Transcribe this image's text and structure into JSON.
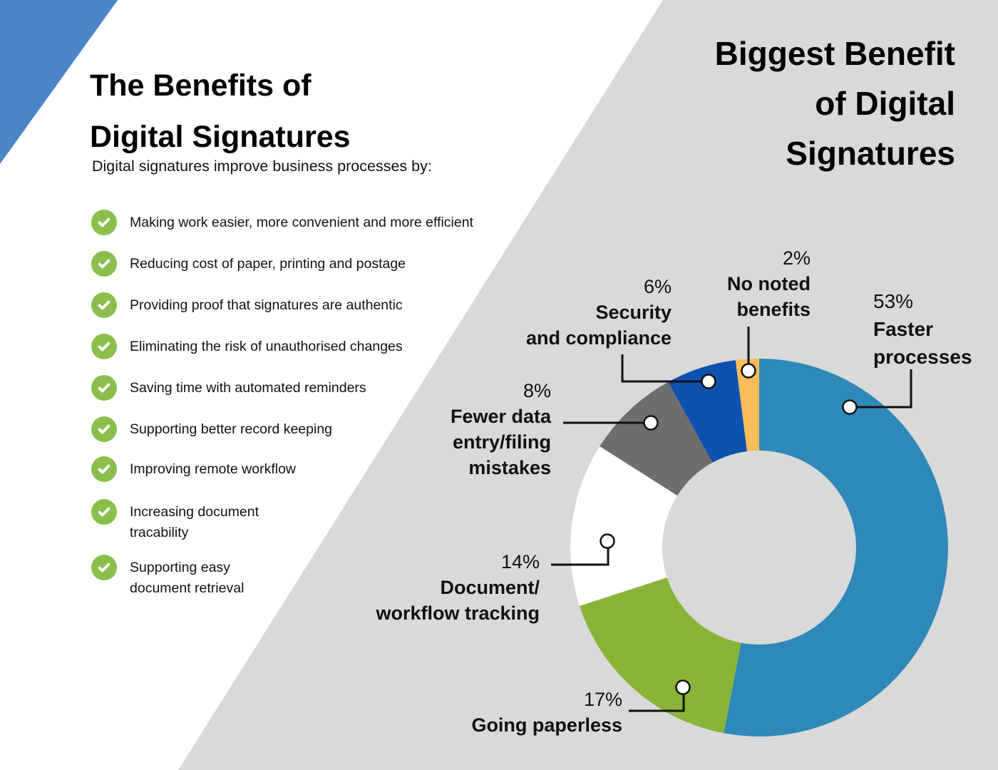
{
  "page": {
    "left": {
      "title_line1": "The Benefits of",
      "title_line2": "Digital Signatures",
      "subtitle": "Digital signatures improve business processes by:",
      "items": [
        "Making work easier, more convenient and more efficient",
        "Reducing cost of paper, printing and postage",
        "Providing proof that signatures are authentic",
        "Eliminating the risk of unauthorised changes",
        "Saving time with automated reminders",
        "Supporting better record keeping",
        "Improving remote workflow",
        "Increasing document tracability",
        "Supporting easy document retrieval"
      ]
    },
    "right": {
      "title_line1": "Biggest Benefit",
      "title_line2": "of Digital",
      "title_line3": "Signatures"
    }
  },
  "colors": {
    "triangle_blue": "#4A86C7",
    "panel_gray": "#D9D9D9",
    "check_green": "#8BBE4B"
  },
  "chart_data": {
    "type": "pie",
    "subtype": "donut",
    "title": "Biggest Benefit of Digital Signatures",
    "start_angle_deg": 0,
    "direction": "clockwise",
    "legend_position": "callouts",
    "slices": [
      {
        "label": "Faster processes",
        "value": 53,
        "pct": "53%",
        "color": "#2E89B8",
        "lines": [
          "Faster",
          "processes"
        ]
      },
      {
        "label": "Going paperless",
        "value": 17,
        "pct": "17%",
        "color": "#8AB437",
        "lines": [
          "Going paperless"
        ]
      },
      {
        "label": "Document/workflow tracking",
        "value": 14,
        "pct": "14%",
        "color": "#FFFFFF",
        "lines": [
          "Document/",
          "workflow tracking"
        ]
      },
      {
        "label": "Fewer data entry/filing mistakes",
        "value": 8,
        "pct": "8%",
        "color": "#6E6E6E",
        "lines": [
          "Fewer data",
          "entry/filing",
          "mistakes"
        ]
      },
      {
        "label": "Security and compliance",
        "value": 6,
        "pct": "6%",
        "color": "#0C52AE",
        "lines": [
          "Security",
          "and compliance"
        ]
      },
      {
        "label": "No noted benefits",
        "value": 2,
        "pct": "2%",
        "color": "#FBBD59",
        "lines": [
          "No noted",
          "benefits"
        ]
      }
    ]
  }
}
